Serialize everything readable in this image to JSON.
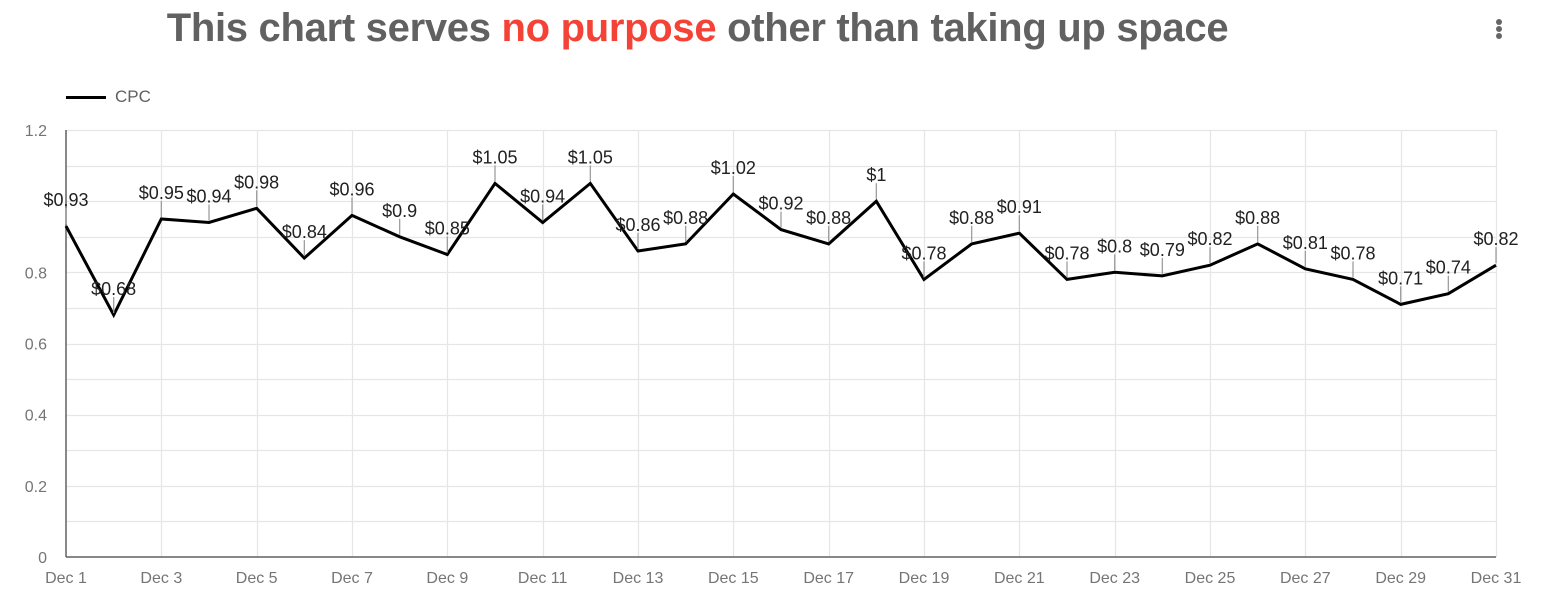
{
  "header": {
    "title_part1": "This chart serves ",
    "title_accent": "no purpose",
    "title_part2": " other than taking up space",
    "accent_color": "#f44336",
    "menu_icon": "more-vert-icon"
  },
  "legend": {
    "series_label": "CPC",
    "color": "#000000"
  },
  "chart_data": {
    "type": "line",
    "title": "This chart serves no purpose other than taking up space",
    "xlabel": "",
    "ylabel": "",
    "ylim": [
      0,
      1.2
    ],
    "yticks": [
      0,
      0.2,
      0.4,
      0.6,
      0.8,
      1.2
    ],
    "ytick_labels": [
      "0",
      "0.2",
      "0.4",
      "0.6",
      "0.8",
      "1.2"
    ],
    "xtick_labels": [
      "Dec 1",
      "Dec 3",
      "Dec 5",
      "Dec 7",
      "Dec 9",
      "Dec 11",
      "Dec 13",
      "Dec 15",
      "Dec 17",
      "Dec 19",
      "Dec 21",
      "Dec 23",
      "Dec 25",
      "Dec 27",
      "Dec 29",
      "Dec 31"
    ],
    "grid": true,
    "legend_position": "top-left",
    "categories": [
      "Dec 1",
      "Dec 2",
      "Dec 3",
      "Dec 4",
      "Dec 5",
      "Dec 6",
      "Dec 7",
      "Dec 8",
      "Dec 9",
      "Dec 10",
      "Dec 11",
      "Dec 12",
      "Dec 13",
      "Dec 14",
      "Dec 15",
      "Dec 16",
      "Dec 17",
      "Dec 18",
      "Dec 19",
      "Dec 20",
      "Dec 21",
      "Dec 22",
      "Dec 23",
      "Dec 24",
      "Dec 25",
      "Dec 26",
      "Dec 27",
      "Dec 28",
      "Dec 29",
      "Dec 30",
      "Dec 31"
    ],
    "series": [
      {
        "name": "CPC",
        "color": "#000000",
        "values": [
          0.93,
          0.68,
          0.95,
          0.94,
          0.98,
          0.84,
          0.96,
          0.9,
          0.85,
          1.05,
          0.94,
          1.05,
          0.86,
          0.88,
          1.02,
          0.92,
          0.88,
          1.0,
          0.78,
          0.88,
          0.91,
          0.78,
          0.8,
          0.79,
          0.82,
          0.88,
          0.81,
          0.78,
          0.71,
          0.74,
          0.82
        ],
        "data_labels": [
          "$0.93",
          "$0.68",
          "$0.95",
          "$0.94",
          "$0.98",
          "$0.84",
          "$0.96",
          "$0.9",
          "$0.85",
          "$1.05",
          "$0.94",
          "$1.05",
          "$0.86",
          "$0.88",
          "$1.02",
          "$0.92",
          "$0.88",
          "$1",
          "$0.78",
          "$0.88",
          "$0.91",
          "$0.78",
          "$0.8",
          "$0.79",
          "$0.82",
          "$0.88",
          "$0.81",
          "$0.78",
          "$0.71",
          "$0.74",
          "$0.82"
        ]
      }
    ]
  }
}
